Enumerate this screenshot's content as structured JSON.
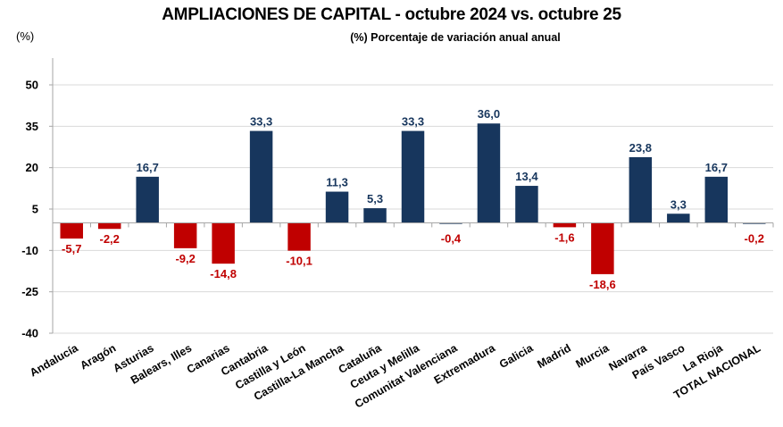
{
  "chart_data": {
    "type": "bar",
    "title": "AMPLIACIONES DE CAPITAL - octubre 2024 vs. octubre 25",
    "subtitle": "(%) Porcentaje de variación anual anual",
    "ylabel": "(%)",
    "xlabel": "",
    "ylim": [
      -40,
      60
    ],
    "yticks": [
      50,
      35,
      20,
      5,
      -10,
      -25,
      -40
    ],
    "grid": true,
    "legend": "none",
    "categories": [
      "Andalucía",
      "Aragón",
      "Asturias",
      "Balears, Illes",
      "Canarias",
      "Cantabria",
      "Castilla y León",
      "Castilla-La Mancha",
      "Cataluña",
      "Ceuta y Melilla",
      "Comunitat Valenciana",
      "Extremadura",
      "Galicia",
      "Madrid",
      "Murcia",
      "Navarra",
      "País Vasco",
      "La Rioja",
      "TOTAL NACIONAL"
    ],
    "values": [
      -5.7,
      -2.2,
      16.7,
      -9.2,
      -14.8,
      33.3,
      -10.1,
      11.3,
      5.3,
      33.3,
      -0.4,
      36.0,
      13.4,
      -1.6,
      -18.6,
      23.8,
      3.3,
      16.7,
      -0.2
    ],
    "labels": [
      "-5,7",
      "-2,2",
      "16,7",
      "-9,2",
      "-14,8",
      "33,3",
      "-10,1",
      "11,3",
      "5,3",
      "33,3",
      "-0,4",
      "36,0",
      "13,4",
      "-1,6",
      "-18,6",
      "23,8",
      "3,3",
      "16,7",
      "-0,2"
    ],
    "colors": {
      "positive": "#17365d",
      "negative": "#c00000",
      "small_negative_bar": "#6a7d96",
      "positive_label": "#17365d",
      "negative_label": "#c00000",
      "grid": "#d9d9d9",
      "axis": "#a6a6a6"
    }
  }
}
